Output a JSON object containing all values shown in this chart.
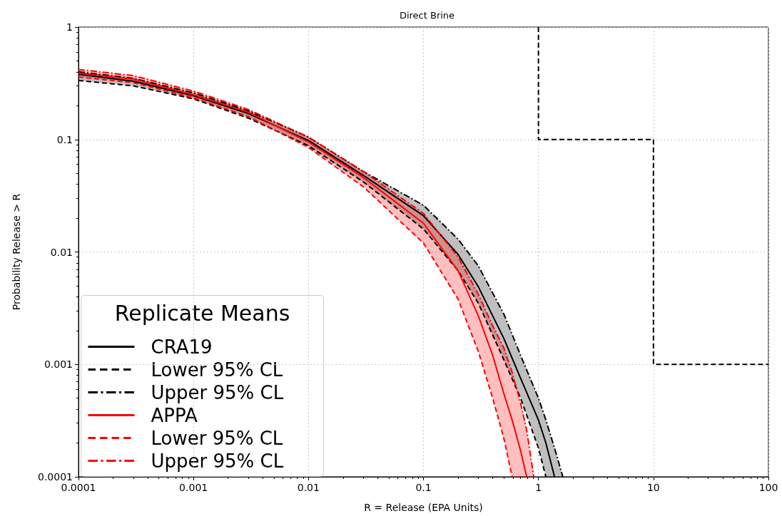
{
  "chart_data": {
    "type": "line",
    "title": "Direct Brine",
    "xlabel": "R = Release (EPA Units)",
    "ylabel": "Probability Release > R",
    "legend_title": "Replicate Means",
    "log": "xy",
    "grid": true,
    "legend": "bottom left",
    "marker": "none",
    "xlim": [
      0.0001,
      100
    ],
    "xticks": [
      0.0001,
      0.001,
      0.01,
      0.1,
      1,
      10,
      100
    ],
    "ylim": [
      0.0001,
      1
    ],
    "yticks": [
      0.0001,
      0.001,
      0.01,
      0.1,
      1
    ],
    "series": [
      {
        "name": "CRA19",
        "color": "#000000",
        "line_style": "solid",
        "x": [
          0.0001,
          0.0003,
          0.001,
          0.003,
          0.01,
          0.03,
          0.1,
          0.2,
          0.3,
          0.5,
          0.7,
          1,
          1.16,
          1.38,
          1.63
        ],
        "values": [
          0.38,
          0.33,
          0.245,
          0.17,
          0.098,
          0.048,
          0.021,
          0.0095,
          0.0049,
          0.0017,
          0.00075,
          0.00032,
          0.0002,
          0.0001,
          null
        ],
        "lower": [
          0.335,
          0.3,
          0.23,
          0.155,
          0.088,
          0.042,
          0.016,
          0.0068,
          0.0035,
          0.0011,
          0.0005,
          0.00018,
          0.0001,
          0.0001,
          0.0001
        ],
        "upper": [
          0.4,
          0.35,
          0.26,
          0.18,
          0.105,
          0.052,
          0.026,
          0.013,
          0.0075,
          0.0028,
          0.0012,
          0.0005,
          0.00032,
          0.00018,
          0.0001
        ]
      },
      {
        "name": "Lower 95% CL",
        "color": "#000000",
        "line_style": "dashed",
        "x": [
          0.0001,
          0.0003,
          0.001,
          0.003,
          0.01,
          0.03,
          0.1,
          0.2,
          0.3,
          0.5,
          0.7,
          1,
          1.16
        ],
        "values": [
          0.335,
          0.3,
          0.23,
          0.155,
          0.088,
          0.042,
          0.016,
          0.0068,
          0.0035,
          0.0011,
          0.0005,
          0.00018,
          0.0001
        ]
      },
      {
        "name": "Upper 95% CL",
        "color": "#000000",
        "line_style": "dashdot",
        "x": [
          0.0001,
          0.0003,
          0.001,
          0.003,
          0.01,
          0.03,
          0.1,
          0.2,
          0.3,
          0.5,
          0.7,
          1,
          1.16,
          1.38,
          1.63
        ],
        "values": [
          0.4,
          0.35,
          0.26,
          0.18,
          0.105,
          0.052,
          0.026,
          0.013,
          0.0075,
          0.0028,
          0.0012,
          0.0005,
          0.00032,
          0.00018,
          0.0001
        ]
      },
      {
        "name": "APPA",
        "color": "#ff0000",
        "line_style": "solid",
        "x": [
          0.0001,
          0.0003,
          0.001,
          0.003,
          0.01,
          0.03,
          0.1,
          0.2,
          0.3,
          0.4,
          0.5,
          0.59,
          0.7,
          0.79,
          0.91
        ],
        "values": [
          0.39,
          0.345,
          0.25,
          0.175,
          0.095,
          0.046,
          0.018,
          0.0068,
          0.0027,
          0.0012,
          0.00055,
          0.00032,
          0.00017,
          0.0001,
          null
        ],
        "lower": [
          0.36,
          0.32,
          0.235,
          0.16,
          0.085,
          0.038,
          0.012,
          0.0038,
          0.0013,
          0.0005,
          0.00022,
          0.0001,
          0.0001,
          0.0001,
          0.0001
        ],
        "upper": [
          0.42,
          0.37,
          0.27,
          0.185,
          0.105,
          0.052,
          0.022,
          0.009,
          0.0042,
          0.0022,
          0.0014,
          0.00085,
          0.00045,
          0.00026,
          0.0001
        ]
      },
      {
        "name": "Lower 95% CL",
        "color": "#ff0000",
        "line_style": "dashed",
        "x": [
          0.0001,
          0.0003,
          0.001,
          0.003,
          0.01,
          0.03,
          0.1,
          0.2,
          0.3,
          0.4,
          0.5,
          0.59
        ],
        "values": [
          0.36,
          0.32,
          0.235,
          0.16,
          0.085,
          0.038,
          0.012,
          0.0038,
          0.0013,
          0.0005,
          0.00022,
          0.0001
        ]
      },
      {
        "name": "Upper 95% CL",
        "color": "#ff0000",
        "line_style": "dashdot",
        "x": [
          0.0001,
          0.0003,
          0.001,
          0.003,
          0.01,
          0.03,
          0.1,
          0.2,
          0.3,
          0.4,
          0.5,
          0.59,
          0.7,
          0.79,
          0.91
        ],
        "values": [
          0.42,
          0.37,
          0.27,
          0.185,
          0.105,
          0.052,
          0.022,
          0.009,
          0.0042,
          0.0022,
          0.0014,
          0.00085,
          0.00045,
          0.00026,
          0.0001
        ]
      },
      {
        "color": "#000000",
        "line_style": "dashed",
        "x": [
          1,
          1,
          10,
          10,
          100
        ],
        "values": [
          1,
          0.1,
          0.1,
          0.001,
          0.001
        ]
      }
    ]
  }
}
